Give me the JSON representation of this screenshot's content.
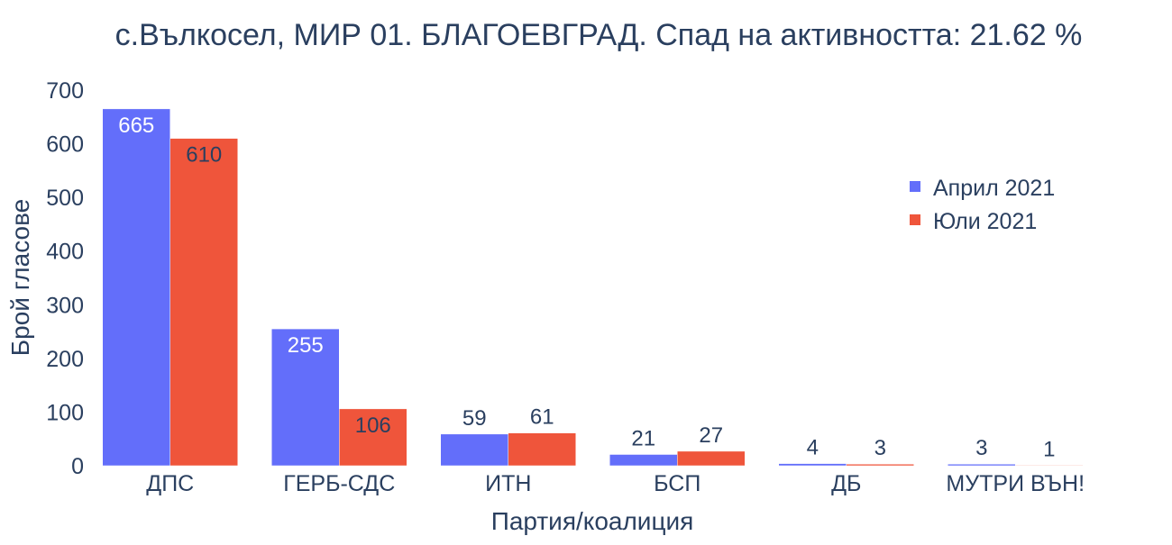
{
  "chart_data": {
    "type": "bar",
    "title": "с.Вълкосел, МИР 01. БЛАГОЕВГРАД. Спад на активността: 21.62 %",
    "xlabel": "Партия/коалиция",
    "ylabel": "Брой гласове",
    "ylim": [
      0,
      700
    ],
    "yticks": [
      "0",
      "100",
      "200",
      "300",
      "400",
      "500",
      "600",
      "700"
    ],
    "categories": [
      "ДПС",
      "ГЕРБ-СДС",
      "ИТН",
      "БСП",
      "ДБ",
      "МУТРИ ВЪН!"
    ],
    "series": [
      {
        "name": "Април 2021",
        "color": "#636efa",
        "values": [
          665,
          255,
          59,
          21,
          4,
          3
        ]
      },
      {
        "name": "Юли 2021",
        "color": "#ef553b",
        "values": [
          610,
          106,
          61,
          27,
          3,
          1
        ]
      }
    ],
    "grid": false,
    "legend": "top-right",
    "text_color": "#2a3f5f"
  }
}
